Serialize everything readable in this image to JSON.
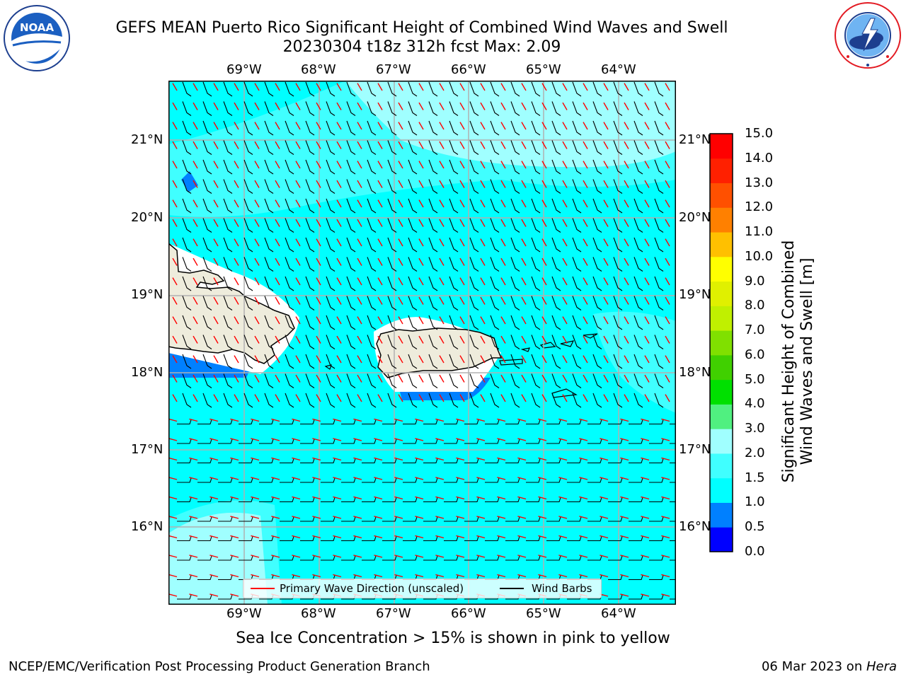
{
  "header": {
    "title_line1": "GEFS MEAN Puerto Rico Significant Height of Combined Wind Waves and Swell",
    "title_line2": "20230304 t18z 312h fcst   Max: 2.09"
  },
  "map": {
    "lon_labels": [
      "69°W",
      "68°W",
      "67°W",
      "66°W",
      "65°W",
      "64°W"
    ],
    "lat_labels": [
      "21°N",
      "20°N",
      "19°N",
      "18°N",
      "17°N",
      "16°N"
    ],
    "ocean_color": "#00ffff",
    "land_color": "#eeecdc",
    "primary_wave_color": "#ff0000",
    "wind_barb_color": "#000000"
  },
  "colorbar": {
    "label_line1": "Significant Height of Combined",
    "label_line2": "Wind Waves and Swell [m]",
    "ticks": [
      "0.0",
      "0.5",
      "1.0",
      "1.5",
      "2.0",
      "3.0",
      "4.0",
      "5.0",
      "6.0",
      "7.0",
      "8.0",
      "9.0",
      "10.0",
      "11.0",
      "12.0",
      "13.0",
      "14.0",
      "15.0"
    ],
    "colors": [
      "#0000ff",
      "#0080ff",
      "#00ffff",
      "#40ffff",
      "#a0ffff",
      "#50f080",
      "#00e000",
      "#40d000",
      "#80e000",
      "#c0f000",
      "#e0f000",
      "#ffff00",
      "#ffc000",
      "#ff8000",
      "#ff5000",
      "#ff2000",
      "#ff0000"
    ]
  },
  "legend": {
    "primary_wave": "Primary Wave Direction (unscaled)",
    "wind_barbs": "Wind Barbs"
  },
  "note": "Sea Ice Concentration > 15% is shown in pink to yellow",
  "footer": {
    "left": "NCEP/EMC/Verification Post Processing Product Generation Branch",
    "right_date": "06 Mar 2023 on ",
    "right_machine": "Hera"
  },
  "logos": {
    "noaa_text": "NOAA",
    "noaa_ring": "NATIONAL OCEANIC AND ATMOSPHERIC ADMINISTRATION · U.S. DEPARTMENT OF COMMERCE",
    "nws_ring": "NATIONAL WEATHER SERVICE"
  }
}
